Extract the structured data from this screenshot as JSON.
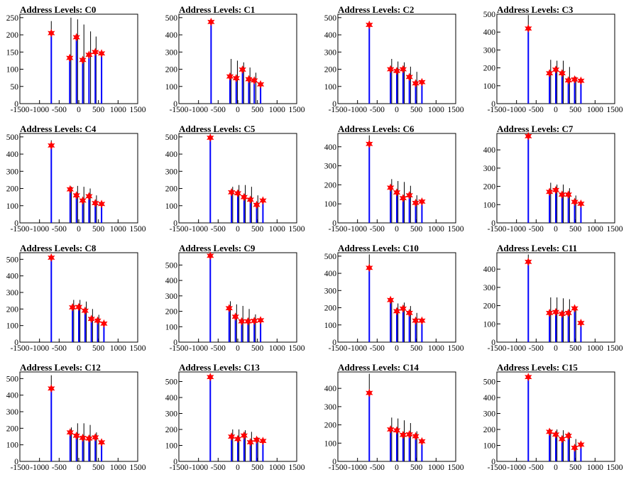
{
  "figure": {
    "colors": {
      "histogram": "#0000ff",
      "spike": "#000000",
      "marker": "#ff0000",
      "axis": "#000000",
      "background": "#ffffff"
    },
    "x_ticks": [
      -1500,
      -1000,
      -500,
      0,
      500,
      1000,
      1500
    ],
    "x_tick_labels": [
      "-1500",
      "-1000",
      "-500",
      "0",
      "500",
      "1000",
      "1500"
    ]
  },
  "chart_data": [
    {
      "type": "bar",
      "title": "Address Levels: C0",
      "xlim": [
        -1500,
        1500
      ],
      "ylim": [
        0,
        260
      ],
      "yticks": [
        0,
        50,
        100,
        150,
        200,
        250
      ],
      "peaks": [
        {
          "x": -700,
          "y": 205
        },
        {
          "x": -230,
          "y": 133
        },
        {
          "x": -60,
          "y": 193
        },
        {
          "x": 100,
          "y": 127
        },
        {
          "x": 260,
          "y": 142
        },
        {
          "x": 420,
          "y": 150
        },
        {
          "x": 580,
          "y": 146
        }
      ],
      "spikes": [
        {
          "x": -700,
          "y": 240
        },
        {
          "x": -200,
          "y": 250
        },
        {
          "x": -30,
          "y": 245
        },
        {
          "x": 130,
          "y": 230
        },
        {
          "x": 300,
          "y": 210
        },
        {
          "x": 440,
          "y": 195
        }
      ]
    },
    {
      "type": "bar",
      "title": "Address Levels: C1",
      "xlim": [
        -1500,
        1500
      ],
      "ylim": [
        0,
        520
      ],
      "yticks": [
        0,
        100,
        200,
        300,
        400,
        500
      ],
      "peaks": [
        {
          "x": -680,
          "y": 475
        },
        {
          "x": -200,
          "y": 158
        },
        {
          "x": -40,
          "y": 148
        },
        {
          "x": 120,
          "y": 198
        },
        {
          "x": 280,
          "y": 142
        },
        {
          "x": 420,
          "y": 135
        },
        {
          "x": 580,
          "y": 112
        }
      ],
      "spikes": [
        {
          "x": -680,
          "y": 490
        },
        {
          "x": -170,
          "y": 260
        },
        {
          "x": -10,
          "y": 250
        },
        {
          "x": 150,
          "y": 240
        },
        {
          "x": 310,
          "y": 210
        },
        {
          "x": 460,
          "y": 180
        }
      ]
    },
    {
      "type": "bar",
      "title": "Address Levels: C2",
      "xlim": [
        -1500,
        1500
      ],
      "ylim": [
        0,
        520
      ],
      "yticks": [
        0,
        100,
        200,
        300,
        400,
        500
      ],
      "peaks": [
        {
          "x": -700,
          "y": 458
        },
        {
          "x": -160,
          "y": 200
        },
        {
          "x": 0,
          "y": 190
        },
        {
          "x": 160,
          "y": 200
        },
        {
          "x": 320,
          "y": 155
        },
        {
          "x": 480,
          "y": 118
        },
        {
          "x": 640,
          "y": 125
        }
      ],
      "spikes": [
        {
          "x": -700,
          "y": 480
        },
        {
          "x": -130,
          "y": 260
        },
        {
          "x": 30,
          "y": 245
        },
        {
          "x": 190,
          "y": 240
        },
        {
          "x": 350,
          "y": 215
        },
        {
          "x": 510,
          "y": 185
        }
      ]
    },
    {
      "type": "bar",
      "title": "Address Levels: C3",
      "xlim": [
        -1500,
        1500
      ],
      "ylim": [
        0,
        500
      ],
      "yticks": [
        0,
        100,
        200,
        300,
        400,
        500
      ],
      "peaks": [
        {
          "x": -700,
          "y": 420
        },
        {
          "x": -160,
          "y": 170
        },
        {
          "x": 0,
          "y": 190
        },
        {
          "x": 160,
          "y": 170
        },
        {
          "x": 320,
          "y": 130
        },
        {
          "x": 480,
          "y": 135
        },
        {
          "x": 640,
          "y": 128
        }
      ],
      "spikes": [
        {
          "x": -700,
          "y": 495
        },
        {
          "x": -130,
          "y": 245
        },
        {
          "x": 30,
          "y": 240
        },
        {
          "x": 190,
          "y": 240
        },
        {
          "x": 350,
          "y": 205
        },
        {
          "x": 510,
          "y": 150
        }
      ]
    },
    {
      "type": "bar",
      "title": "Address Levels: C4",
      "xlim": [
        -1500,
        1500
      ],
      "ylim": [
        0,
        520
      ],
      "yticks": [
        0,
        100,
        200,
        300,
        400,
        500
      ],
      "peaks": [
        {
          "x": -700,
          "y": 450
        },
        {
          "x": -220,
          "y": 195
        },
        {
          "x": -60,
          "y": 160
        },
        {
          "x": 100,
          "y": 130
        },
        {
          "x": 260,
          "y": 155
        },
        {
          "x": 420,
          "y": 115
        },
        {
          "x": 580,
          "y": 110
        }
      ],
      "spikes": [
        {
          "x": -700,
          "y": 480
        },
        {
          "x": -190,
          "y": 210
        },
        {
          "x": -30,
          "y": 215
        },
        {
          "x": 130,
          "y": 210
        },
        {
          "x": 290,
          "y": 200
        },
        {
          "x": 450,
          "y": 160
        }
      ]
    },
    {
      "type": "bar",
      "title": "Address Levels: C5",
      "xlim": [
        -1500,
        1500
      ],
      "ylim": [
        0,
        520
      ],
      "yticks": [
        0,
        100,
        200,
        300,
        400,
        500
      ],
      "peaks": [
        {
          "x": -700,
          "y": 495
        },
        {
          "x": -160,
          "y": 178
        },
        {
          "x": 0,
          "y": 172
        },
        {
          "x": 160,
          "y": 150
        },
        {
          "x": 320,
          "y": 135
        },
        {
          "x": 480,
          "y": 105
        },
        {
          "x": 640,
          "y": 130
        }
      ],
      "spikes": [
        {
          "x": -700,
          "y": 510
        },
        {
          "x": -130,
          "y": 210
        },
        {
          "x": 30,
          "y": 220
        },
        {
          "x": 190,
          "y": 220
        },
        {
          "x": 350,
          "y": 210
        },
        {
          "x": 510,
          "y": 160
        }
      ]
    },
    {
      "type": "bar",
      "title": "Address Levels: C6",
      "xlim": [
        -1500,
        1500
      ],
      "ylim": [
        0,
        470
      ],
      "yticks": [
        0,
        100,
        200,
        300,
        400
      ],
      "peaks": [
        {
          "x": -700,
          "y": 415
        },
        {
          "x": -160,
          "y": 185
        },
        {
          "x": 0,
          "y": 160
        },
        {
          "x": 160,
          "y": 130
        },
        {
          "x": 320,
          "y": 145
        },
        {
          "x": 480,
          "y": 105
        },
        {
          "x": 640,
          "y": 112
        }
      ],
      "spikes": [
        {
          "x": -700,
          "y": 460
        },
        {
          "x": -130,
          "y": 230
        },
        {
          "x": 30,
          "y": 220
        },
        {
          "x": 190,
          "y": 215
        },
        {
          "x": 350,
          "y": 195
        },
        {
          "x": 510,
          "y": 145
        }
      ]
    },
    {
      "type": "bar",
      "title": "Address Levels: C7",
      "xlim": [
        -1500,
        1500
      ],
      "ylim": [
        0,
        490
      ],
      "yticks": [
        0,
        100,
        200,
        300,
        400
      ],
      "peaks": [
        {
          "x": -700,
          "y": 475
        },
        {
          "x": -160,
          "y": 170
        },
        {
          "x": 0,
          "y": 180
        },
        {
          "x": 160,
          "y": 155
        },
        {
          "x": 320,
          "y": 155
        },
        {
          "x": 480,
          "y": 115
        },
        {
          "x": 640,
          "y": 105
        }
      ],
      "spikes": [
        {
          "x": -700,
          "y": 485
        },
        {
          "x": -130,
          "y": 220
        },
        {
          "x": 30,
          "y": 210
        },
        {
          "x": 190,
          "y": 210
        },
        {
          "x": 350,
          "y": 190
        },
        {
          "x": 510,
          "y": 150
        }
      ]
    },
    {
      "type": "bar",
      "title": "Address Levels: C8",
      "xlim": [
        -1500,
        1500
      ],
      "ylim": [
        0,
        540
      ],
      "yticks": [
        0,
        100,
        200,
        300,
        400,
        500
      ],
      "peaks": [
        {
          "x": -700,
          "y": 510
        },
        {
          "x": -160,
          "y": 210
        },
        {
          "x": 0,
          "y": 212
        },
        {
          "x": 160,
          "y": 190
        },
        {
          "x": 320,
          "y": 140
        },
        {
          "x": 480,
          "y": 130
        },
        {
          "x": 640,
          "y": 112
        }
      ],
      "spikes": [
        {
          "x": -700,
          "y": 530
        },
        {
          "x": -130,
          "y": 255
        },
        {
          "x": 30,
          "y": 255
        },
        {
          "x": 190,
          "y": 245
        },
        {
          "x": 350,
          "y": 200
        },
        {
          "x": 510,
          "y": 165
        }
      ]
    },
    {
      "type": "bar",
      "title": "Address Levels: C9",
      "xlim": [
        -1500,
        1500
      ],
      "ylim": [
        0,
        580
      ],
      "yticks": [
        0,
        100,
        200,
        300,
        400,
        500
      ],
      "peaks": [
        {
          "x": -700,
          "y": 560
        },
        {
          "x": -220,
          "y": 220
        },
        {
          "x": -60,
          "y": 165
        },
        {
          "x": 100,
          "y": 135
        },
        {
          "x": 260,
          "y": 135
        },
        {
          "x": 420,
          "y": 138
        },
        {
          "x": 580,
          "y": 142
        }
      ],
      "spikes": [
        {
          "x": -700,
          "y": 570
        },
        {
          "x": -190,
          "y": 265
        },
        {
          "x": -30,
          "y": 245
        },
        {
          "x": 130,
          "y": 235
        },
        {
          "x": 290,
          "y": 215
        },
        {
          "x": 450,
          "y": 180
        }
      ]
    },
    {
      "type": "bar",
      "title": "Address Levels: C10",
      "xlim": [
        -1500,
        1500
      ],
      "ylim": [
        0,
        520
      ],
      "yticks": [
        0,
        100,
        200,
        300,
        400,
        500
      ],
      "peaks": [
        {
          "x": -700,
          "y": 432
        },
        {
          "x": -160,
          "y": 245
        },
        {
          "x": 0,
          "y": 180
        },
        {
          "x": 160,
          "y": 195
        },
        {
          "x": 320,
          "y": 170
        },
        {
          "x": 480,
          "y": 125
        },
        {
          "x": 640,
          "y": 125
        }
      ],
      "spikes": [
        {
          "x": -700,
          "y": 510
        },
        {
          "x": -130,
          "y": 245
        },
        {
          "x": 30,
          "y": 225
        },
        {
          "x": 190,
          "y": 230
        },
        {
          "x": 350,
          "y": 210
        },
        {
          "x": 510,
          "y": 170
        }
      ]
    },
    {
      "type": "bar",
      "title": "Address Levels: C11",
      "xlim": [
        -1500,
        1500
      ],
      "ylim": [
        0,
        490
      ],
      "yticks": [
        0,
        100,
        200,
        300,
        400
      ],
      "peaks": [
        {
          "x": -700,
          "y": 440
        },
        {
          "x": -160,
          "y": 160
        },
        {
          "x": 0,
          "y": 165
        },
        {
          "x": 160,
          "y": 155
        },
        {
          "x": 320,
          "y": 160
        },
        {
          "x": 480,
          "y": 185
        },
        {
          "x": 640,
          "y": 105
        }
      ],
      "spikes": [
        {
          "x": -700,
          "y": 480
        },
        {
          "x": -130,
          "y": 245
        },
        {
          "x": 30,
          "y": 245
        },
        {
          "x": 190,
          "y": 240
        },
        {
          "x": 350,
          "y": 235
        },
        {
          "x": 510,
          "y": 185
        }
      ]
    },
    {
      "type": "bar",
      "title": "Address Levels: C12",
      "xlim": [
        -1500,
        1500
      ],
      "ylim": [
        0,
        540
      ],
      "yticks": [
        0,
        100,
        200,
        300,
        400,
        500
      ],
      "peaks": [
        {
          "x": -700,
          "y": 440
        },
        {
          "x": -220,
          "y": 175
        },
        {
          "x": -60,
          "y": 155
        },
        {
          "x": 100,
          "y": 142
        },
        {
          "x": 260,
          "y": 138
        },
        {
          "x": 420,
          "y": 145
        },
        {
          "x": 580,
          "y": 115
        }
      ],
      "spikes": [
        {
          "x": -700,
          "y": 520
        },
        {
          "x": -190,
          "y": 205
        },
        {
          "x": -30,
          "y": 230
        },
        {
          "x": 130,
          "y": 230
        },
        {
          "x": 290,
          "y": 220
        },
        {
          "x": 450,
          "y": 175
        }
      ]
    },
    {
      "type": "bar",
      "title": "Address Levels: C13",
      "xlim": [
        -1500,
        1500
      ],
      "ylim": [
        0,
        560
      ],
      "yticks": [
        0,
        100,
        200,
        300,
        400,
        500
      ],
      "peaks": [
        {
          "x": -700,
          "y": 528
        },
        {
          "x": -160,
          "y": 155
        },
        {
          "x": 0,
          "y": 140
        },
        {
          "x": 160,
          "y": 162
        },
        {
          "x": 320,
          "y": 120
        },
        {
          "x": 480,
          "y": 135
        },
        {
          "x": 640,
          "y": 128
        }
      ],
      "spikes": [
        {
          "x": -700,
          "y": 545
        },
        {
          "x": -130,
          "y": 200
        },
        {
          "x": 30,
          "y": 200
        },
        {
          "x": 190,
          "y": 195
        },
        {
          "x": 350,
          "y": 185
        },
        {
          "x": 510,
          "y": 150
        }
      ]
    },
    {
      "type": "bar",
      "title": "Address Levels: C14",
      "xlim": [
        -1500,
        1500
      ],
      "ylim": [
        0,
        490
      ],
      "yticks": [
        0,
        100,
        200,
        300,
        400
      ],
      "peaks": [
        {
          "x": -700,
          "y": 375
        },
        {
          "x": -160,
          "y": 175
        },
        {
          "x": 0,
          "y": 170
        },
        {
          "x": 160,
          "y": 145
        },
        {
          "x": 320,
          "y": 148
        },
        {
          "x": 480,
          "y": 138
        },
        {
          "x": 640,
          "y": 110
        }
      ],
      "spikes": [
        {
          "x": -700,
          "y": 480
        },
        {
          "x": -130,
          "y": 240
        },
        {
          "x": 30,
          "y": 235
        },
        {
          "x": 190,
          "y": 225
        },
        {
          "x": 350,
          "y": 210
        },
        {
          "x": 510,
          "y": 165
        }
      ]
    },
    {
      "type": "bar",
      "title": "Address Levels: C15",
      "xlim": [
        -1500,
        1500
      ],
      "ylim": [
        0,
        560
      ],
      "yticks": [
        0,
        100,
        200,
        300,
        400,
        500
      ],
      "peaks": [
        {
          "x": -700,
          "y": 528
        },
        {
          "x": -160,
          "y": 185
        },
        {
          "x": 0,
          "y": 168
        },
        {
          "x": 160,
          "y": 140
        },
        {
          "x": 320,
          "y": 160
        },
        {
          "x": 480,
          "y": 85
        },
        {
          "x": 640,
          "y": 105
        }
      ],
      "spikes": [
        {
          "x": -700,
          "y": 540
        },
        {
          "x": -130,
          "y": 200
        },
        {
          "x": 30,
          "y": 200
        },
        {
          "x": 190,
          "y": 195
        },
        {
          "x": 350,
          "y": 180
        },
        {
          "x": 510,
          "y": 140
        }
      ]
    }
  ]
}
